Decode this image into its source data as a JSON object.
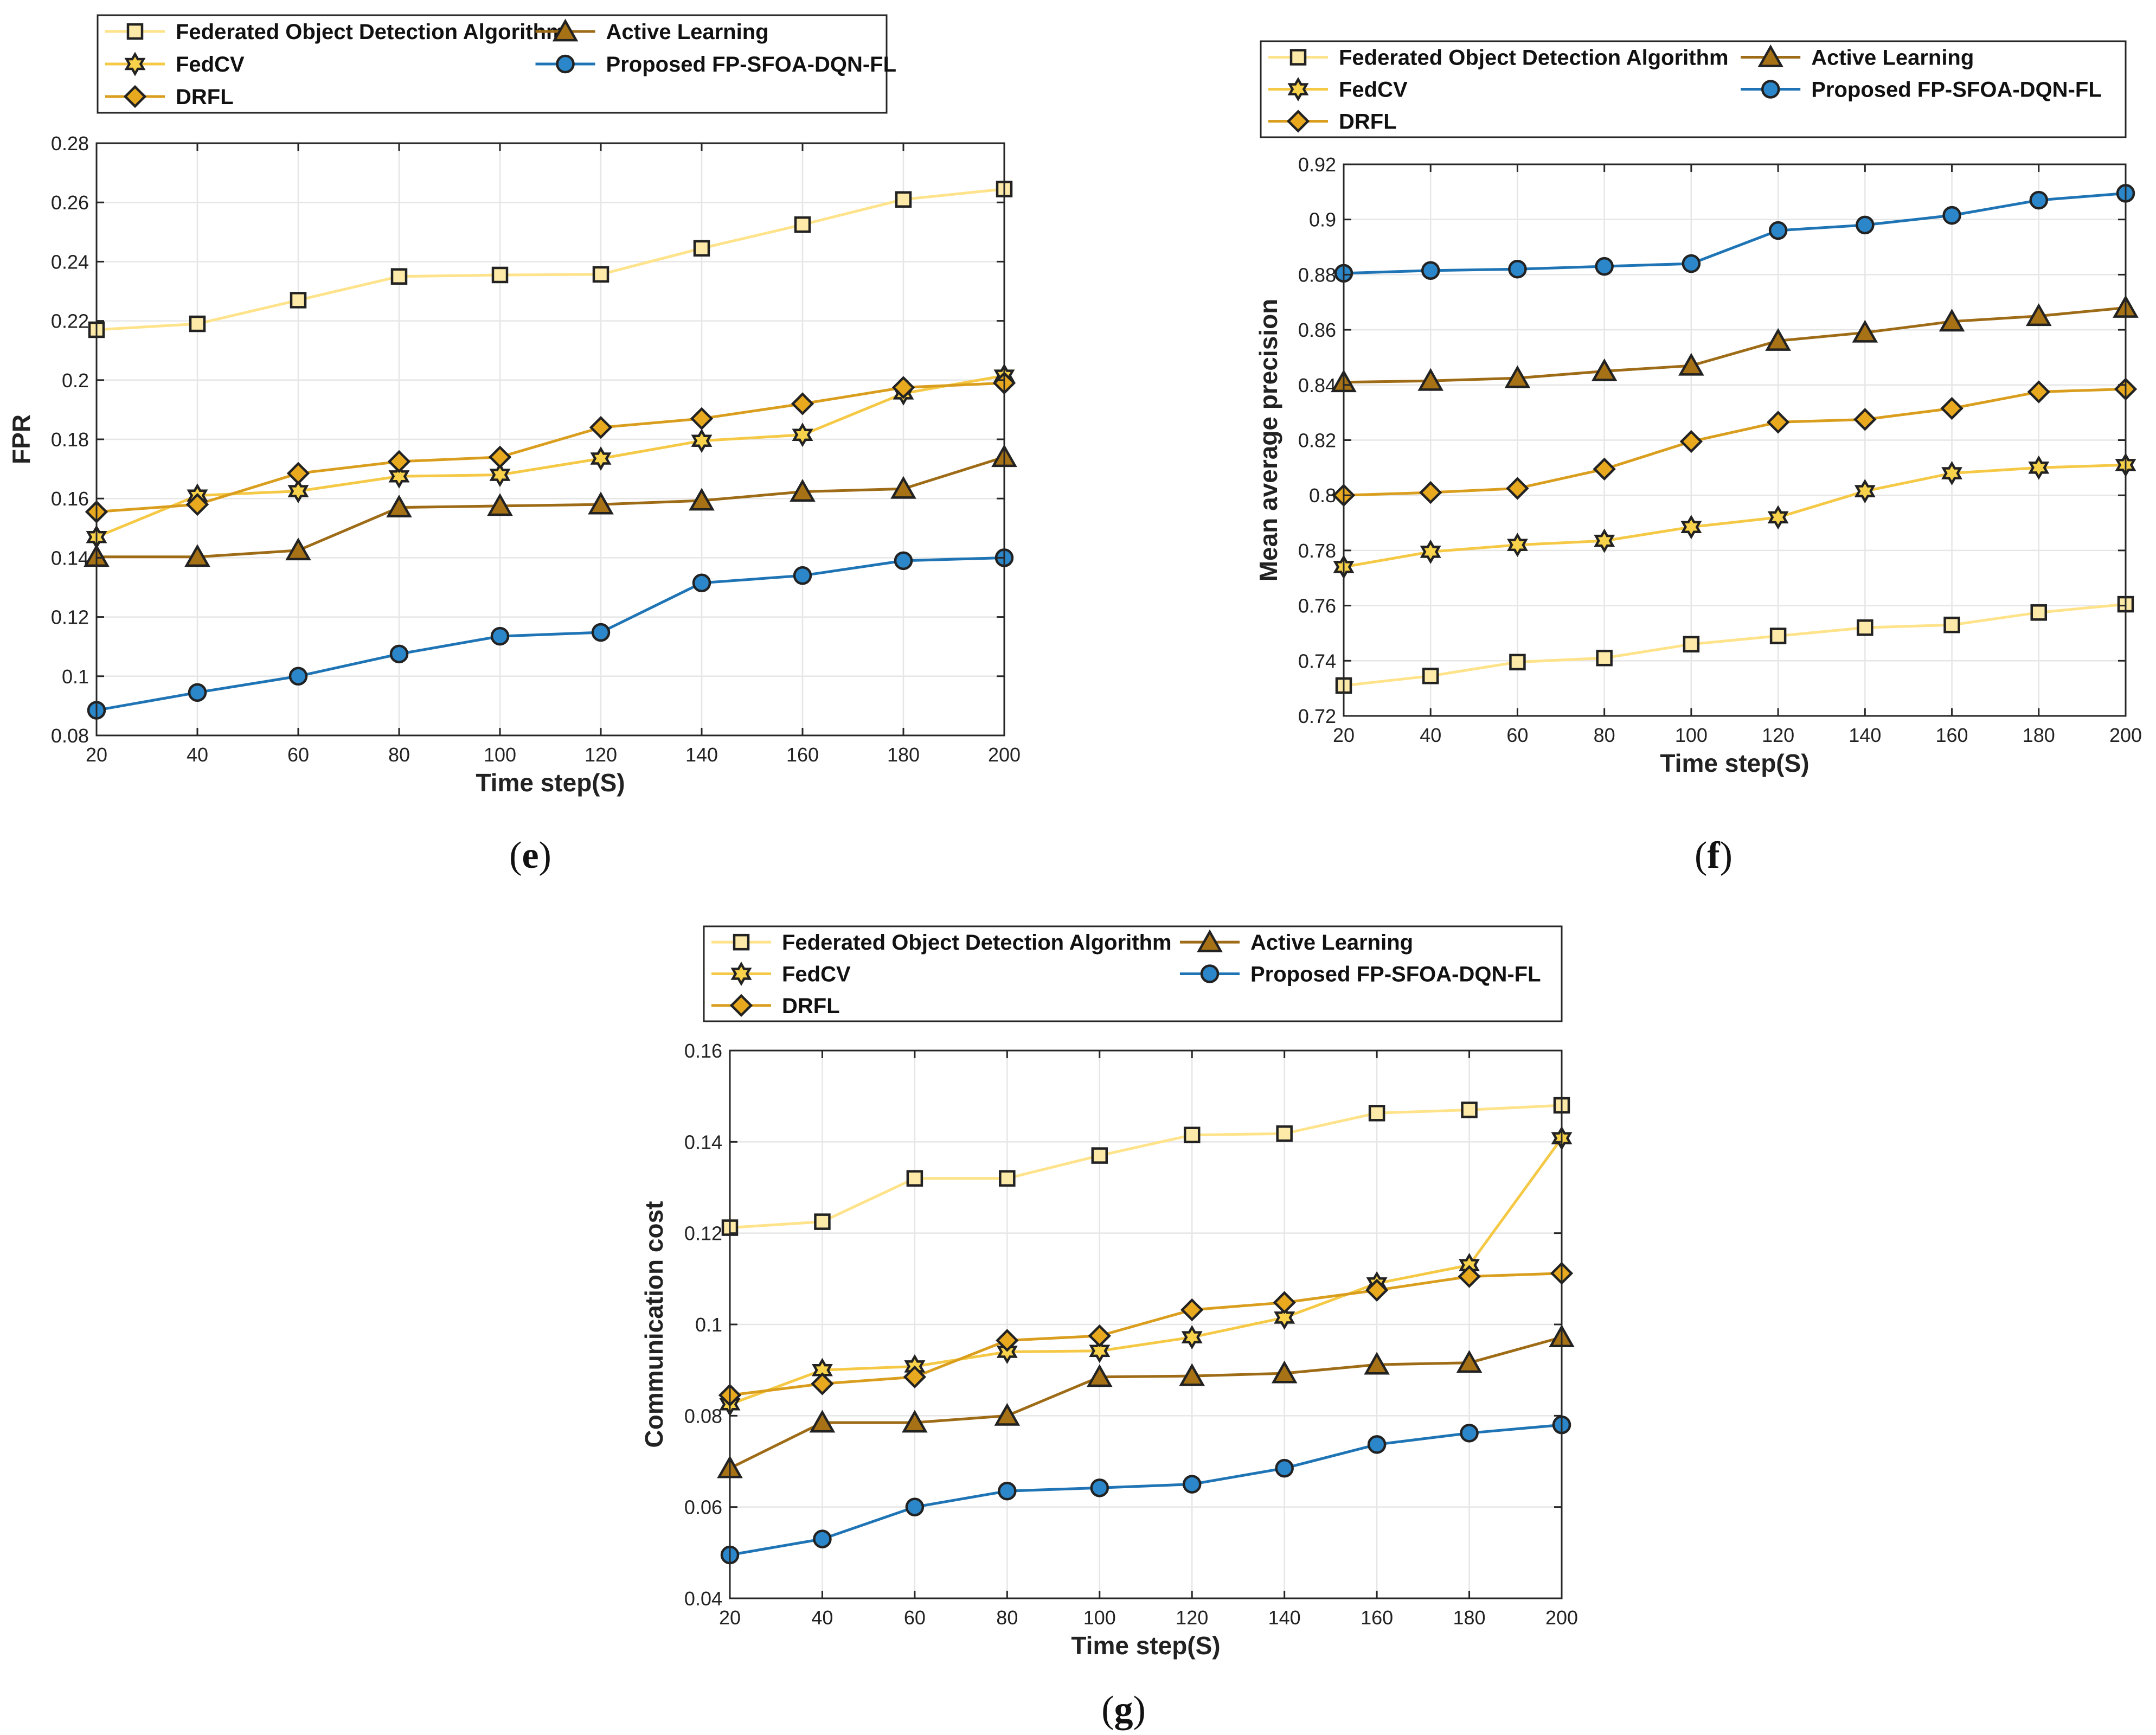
{
  "chart_data": [
    {
      "id": "e",
      "type": "line",
      "caption_letter": "e",
      "xlabel": "Time step(S)",
      "ylabel": "FPR",
      "ylim": [
        0.08,
        0.28
      ],
      "yticks": [
        0.08,
        0.1,
        0.12,
        0.14,
        0.16,
        0.18,
        0.2,
        0.22,
        0.24,
        0.26,
        0.28
      ],
      "ytick_labels": [
        "0.08",
        "0.1",
        "0.12",
        "0.14",
        "0.16",
        "0.18",
        "0.2",
        "0.22",
        "0.24",
        "0.26",
        "0.28"
      ],
      "x": [
        20,
        40,
        60,
        80,
        100,
        120,
        140,
        160,
        180,
        200
      ],
      "xtick_labels": [
        "20",
        "40",
        "60",
        "80",
        "100",
        "120",
        "140",
        "160",
        "180",
        "200"
      ],
      "grid": true,
      "series": [
        {
          "name": "Federated Object Detection Algorithm",
          "marker": "square",
          "values": [
            0.217,
            0.219,
            0.227,
            0.235,
            0.2355,
            0.2357,
            0.2445,
            0.2525,
            0.261,
            0.2645
          ]
        },
        {
          "name": "FedCV",
          "marker": "hexagram",
          "values": [
            0.147,
            0.161,
            0.1625,
            0.1675,
            0.168,
            0.1735,
            0.1795,
            0.1815,
            0.1955,
            0.2015
          ]
        },
        {
          "name": "DRFL",
          "marker": "diamond",
          "values": [
            0.1555,
            0.158,
            0.1685,
            0.1725,
            0.174,
            0.184,
            0.187,
            0.192,
            0.1975,
            0.199
          ]
        },
        {
          "name": "Active Learning",
          "marker": "triangle",
          "values": [
            0.1403,
            0.1403,
            0.1425,
            0.157,
            0.1575,
            0.158,
            0.1593,
            0.1623,
            0.1633,
            0.174
          ]
        },
        {
          "name": "Proposed FP-SFOA-DQN-FL",
          "marker": "circle",
          "values": [
            0.0885,
            0.0945,
            0.1,
            0.1075,
            0.1135,
            0.1148,
            0.1315,
            0.134,
            0.139,
            0.14
          ]
        }
      ]
    },
    {
      "id": "f",
      "type": "line",
      "caption_letter": "f",
      "xlabel": "Time step(S)",
      "ylabel": "Mean average precision",
      "ylim": [
        0.72,
        0.92
      ],
      "yticks": [
        0.72,
        0.74,
        0.76,
        0.78,
        0.8,
        0.82,
        0.84,
        0.86,
        0.88,
        0.9,
        0.92
      ],
      "ytick_labels": [
        "0.72",
        "0.74",
        "0.76",
        "0.78",
        "0.8",
        "0.82",
        "0.84",
        "0.86",
        "0.88",
        "0.9",
        "0.92"
      ],
      "x": [
        20,
        40,
        60,
        80,
        100,
        120,
        140,
        160,
        180,
        200
      ],
      "xtick_labels": [
        "20",
        "40",
        "60",
        "80",
        "100",
        "120",
        "140",
        "160",
        "180",
        "200"
      ],
      "grid": true,
      "series": [
        {
          "name": "Federated Object Detection Algorithm",
          "marker": "square",
          "values": [
            0.731,
            0.7345,
            0.7395,
            0.741,
            0.746,
            0.749,
            0.752,
            0.753,
            0.7575,
            0.7605
          ]
        },
        {
          "name": "FedCV",
          "marker": "hexagram",
          "values": [
            0.774,
            0.7795,
            0.782,
            0.7835,
            0.7885,
            0.792,
            0.8015,
            0.808,
            0.81,
            0.811
          ]
        },
        {
          "name": "DRFL",
          "marker": "diamond",
          "values": [
            0.8,
            0.801,
            0.8025,
            0.8095,
            0.8195,
            0.8265,
            0.8275,
            0.8315,
            0.8375,
            0.8385
          ]
        },
        {
          "name": "Active Learning",
          "marker": "triangle",
          "values": [
            0.841,
            0.8415,
            0.8425,
            0.845,
            0.847,
            0.856,
            0.859,
            0.863,
            0.865,
            0.868
          ]
        },
        {
          "name": "Proposed FP-SFOA-DQN-FL",
          "marker": "circle",
          "values": [
            0.8805,
            0.8815,
            0.882,
            0.883,
            0.884,
            0.896,
            0.898,
            0.9015,
            0.907,
            0.9095
          ]
        }
      ]
    },
    {
      "id": "g",
      "type": "line",
      "caption_letter": "g",
      "xlabel": "Time step(S)",
      "ylabel": "Communication cost",
      "ylim": [
        0.04,
        0.16
      ],
      "yticks": [
        0.04,
        0.06,
        0.08,
        0.1,
        0.12,
        0.14,
        0.16
      ],
      "ytick_labels": [
        "0.04",
        "0.06",
        "0.08",
        "0.1",
        "0.12",
        "0.14",
        "0.16"
      ],
      "x": [
        20,
        40,
        60,
        80,
        100,
        120,
        140,
        160,
        180,
        200
      ],
      "xtick_labels": [
        "20",
        "40",
        "60",
        "80",
        "100",
        "120",
        "140",
        "160",
        "180",
        "200"
      ],
      "grid": true,
      "series": [
        {
          "name": "Federated Object Detection Algorithm",
          "marker": "square",
          "values": [
            0.1212,
            0.1225,
            0.132,
            0.132,
            0.137,
            0.1415,
            0.1418,
            0.1463,
            0.147,
            0.148
          ]
        },
        {
          "name": "FedCV",
          "marker": "hexagram",
          "values": [
            0.0825,
            0.09,
            0.0908,
            0.094,
            0.0942,
            0.0972,
            0.1015,
            0.109,
            0.113,
            0.1408
          ]
        },
        {
          "name": "DRFL",
          "marker": "diamond",
          "values": [
            0.0845,
            0.087,
            0.0885,
            0.0965,
            0.0975,
            0.1032,
            0.1048,
            0.1075,
            0.1105,
            0.1112
          ]
        },
        {
          "name": "Active Learning",
          "marker": "triangle",
          "values": [
            0.0685,
            0.0785,
            0.0785,
            0.08,
            0.0885,
            0.0887,
            0.0893,
            0.0912,
            0.0916,
            0.0972
          ]
        },
        {
          "name": "Proposed FP-SFOA-DQN-FL",
          "marker": "circle",
          "values": [
            0.0495,
            0.053,
            0.06,
            0.0635,
            0.0642,
            0.065,
            0.0685,
            0.0737,
            0.0762,
            0.078
          ]
        }
      ]
    }
  ],
  "series_styles": {
    "Federated Object Detection Algorithm": {
      "line": "#FFE38A",
      "fill": "#FDE9A8",
      "edge": "#222222"
    },
    "FedCV": {
      "line": "#F5C945",
      "fill": "#F8D24A",
      "edge": "#222222"
    },
    "DRFL": {
      "line": "#DA9E1E",
      "fill": "#E8A91F",
      "edge": "#222222"
    },
    "Active Learning": {
      "line": "#9E6B17",
      "fill": "#A77215",
      "edge": "#222222"
    },
    "Proposed FP-SFOA-DQN-FL": {
      "line": "#1E74B4",
      "fill": "#2B87C9",
      "edge": "#222222"
    }
  }
}
